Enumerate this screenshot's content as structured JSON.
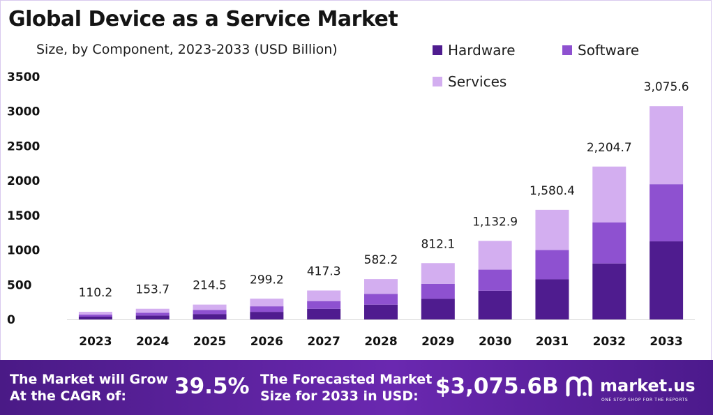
{
  "title": "Global Device as a Service Market",
  "subtitle": "Size, by Component, 2023-2033 (USD Billion)",
  "colors": {
    "hardware": "#4f1c8f",
    "software": "#8e51d0",
    "services": "#d3aef0",
    "footer_bg": "#5a229d"
  },
  "legend": {
    "hardware": "Hardware",
    "software": "Software",
    "services": "Services"
  },
  "chart_data": {
    "type": "bar",
    "stacked": true,
    "title": "Global Device as a Service Market",
    "subtitle": "Size, by Component, 2023-2033 (USD Billion)",
    "xlabel": "",
    "ylabel": "",
    "ylim": [
      0,
      3500
    ],
    "yticks": [
      0,
      500,
      1000,
      1500,
      2000,
      2500,
      3000,
      3500
    ],
    "grid": false,
    "legend_position": "top-right",
    "categories": [
      "2023",
      "2024",
      "2025",
      "2026",
      "2027",
      "2028",
      "2029",
      "2030",
      "2031",
      "2032",
      "2033"
    ],
    "series": [
      {
        "name": "Hardware",
        "values": [
          40.3,
          56.3,
          78.5,
          109.5,
          152.8,
          213.1,
          297.3,
          414.8,
          578.6,
          807.2,
          1126.0
        ]
      },
      {
        "name": "Software",
        "values": [
          29.5,
          41.2,
          57.5,
          80.2,
          111.8,
          156.0,
          217.6,
          303.6,
          423.5,
          590.8,
          823.7
        ]
      },
      {
        "name": "Services",
        "values": [
          40.4,
          56.2,
          78.5,
          109.5,
          152.7,
          213.1,
          297.2,
          414.5,
          578.3,
          806.7,
          1125.9
        ]
      }
    ],
    "totals": [
      110.2,
      153.7,
      214.5,
      299.2,
      417.3,
      582.2,
      812.1,
      1132.9,
      1580.4,
      2204.7,
      3075.6
    ],
    "total_labels": [
      "110.2",
      "153.7",
      "214.5",
      "299.2",
      "417.3",
      "582.2",
      "812.1",
      "1,132.9",
      "1,580.4",
      "2,204.7",
      "3,075.6"
    ]
  },
  "footer": {
    "cagr_label_line1": "The Market will Grow",
    "cagr_label_line2": "At the CAGR of:",
    "cagr_value": "39.5%",
    "forecast_label_line1": "The Forecasted Market",
    "forecast_label_line2": "Size for 2033 in USD:",
    "forecast_value": "$3,075.6B",
    "brand_name": "market.us",
    "brand_tagline": "ONE STOP SHOP FOR THE REPORTS"
  }
}
